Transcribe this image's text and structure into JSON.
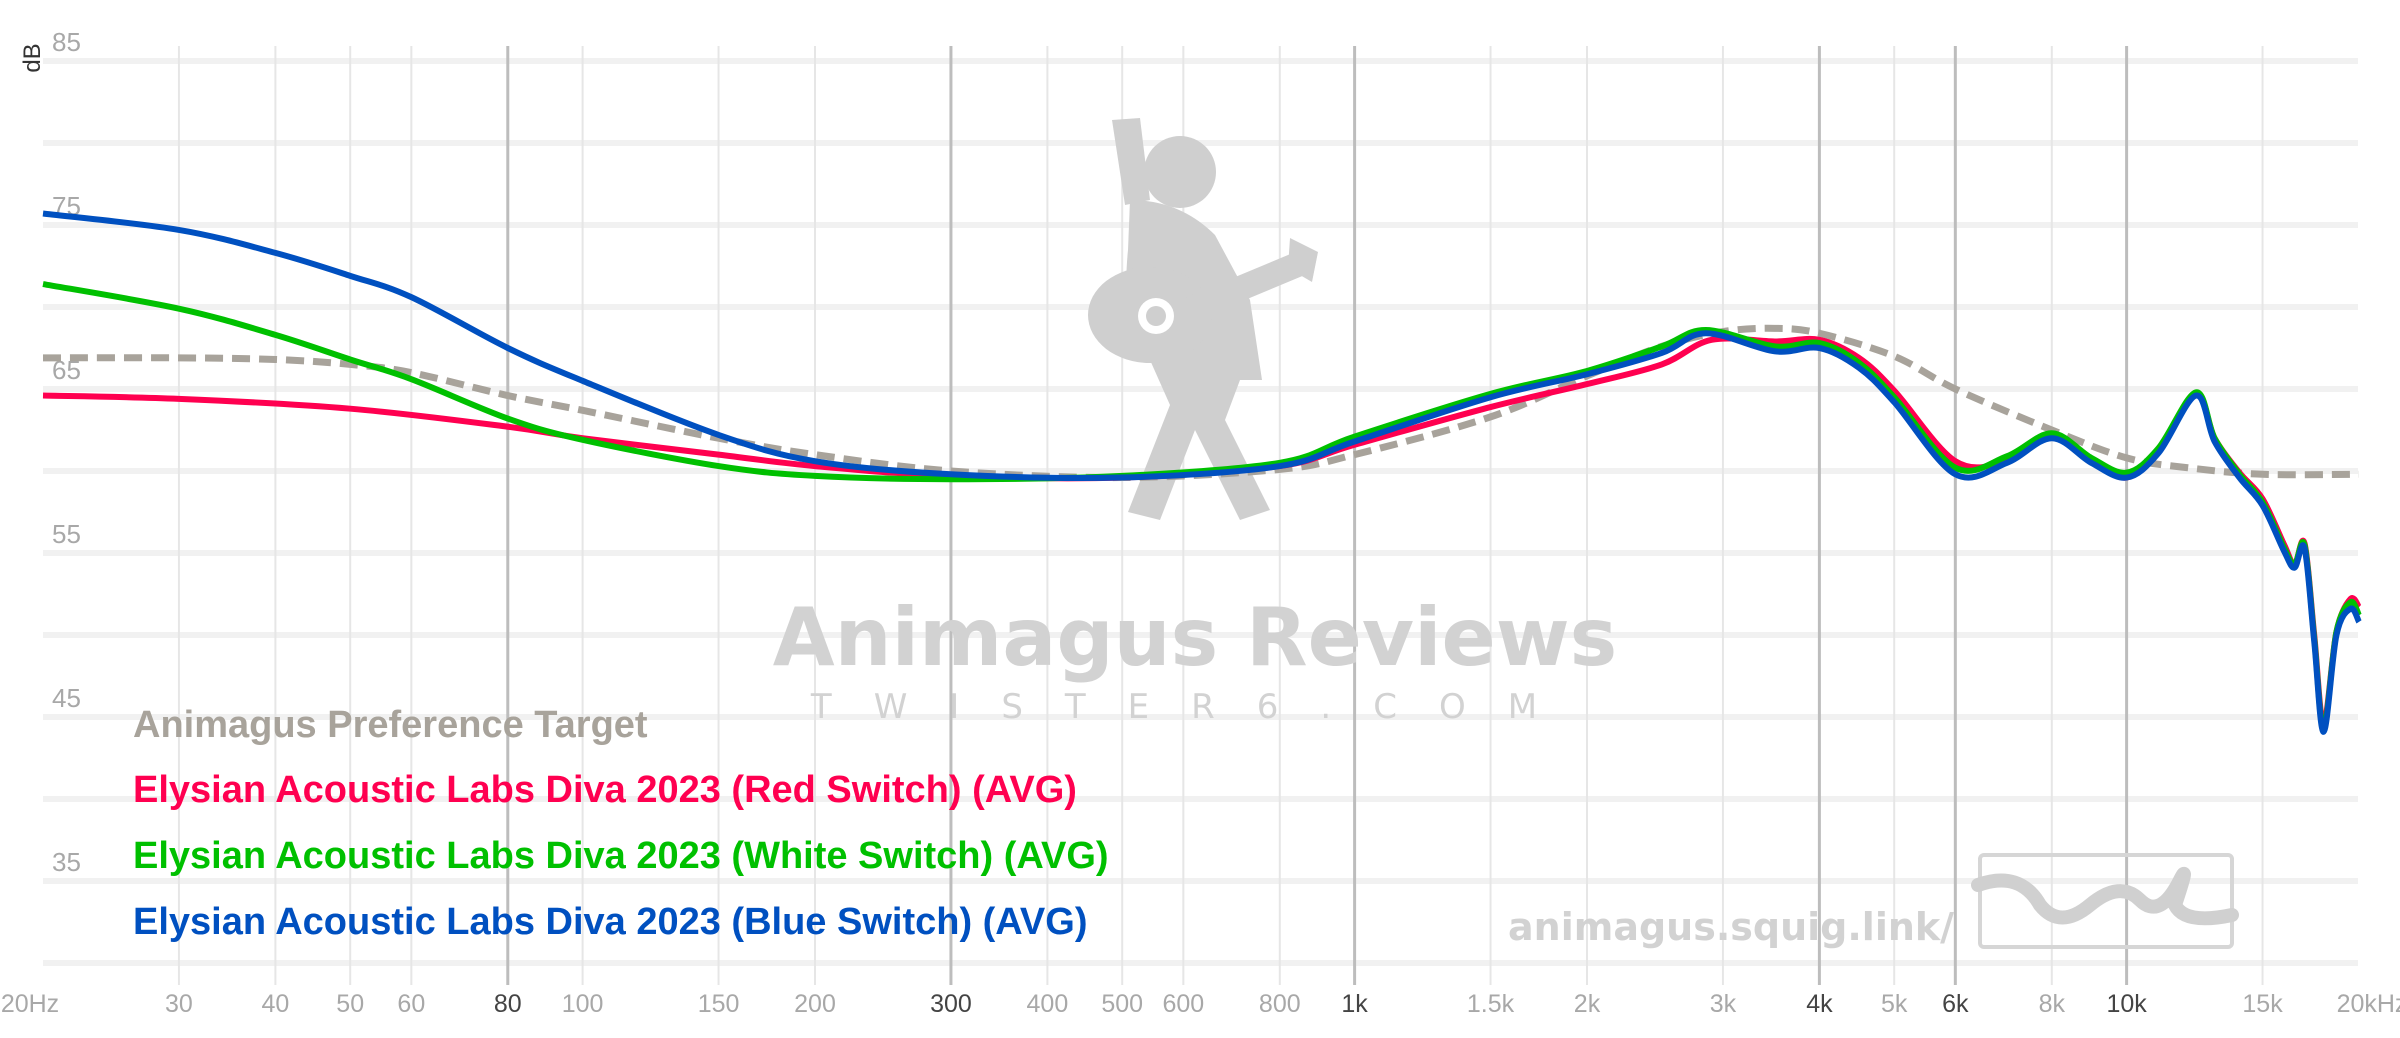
{
  "chart_data": {
    "type": "line",
    "ylabel": "dB",
    "xscale": "log",
    "xlim": [
      20,
      20000
    ],
    "ylim": [
      30,
      85
    ],
    "grid": true,
    "legend_placement": "bottom-left",
    "y_ticks": [
      "85",
      "75",
      "65",
      "55",
      "45",
      "35"
    ],
    "y_tick_values": [
      85,
      75,
      65,
      55,
      45,
      35
    ],
    "x_ticks": [
      {
        "f": 20,
        "label": "20Hz",
        "major": false
      },
      {
        "f": 30,
        "label": "30",
        "major": false
      },
      {
        "f": 40,
        "label": "40",
        "major": false
      },
      {
        "f": 50,
        "label": "50",
        "major": false
      },
      {
        "f": 60,
        "label": "60",
        "major": false
      },
      {
        "f": 80,
        "label": "80",
        "major": true
      },
      {
        "f": 100,
        "label": "100",
        "major": false
      },
      {
        "f": 150,
        "label": "150",
        "major": false
      },
      {
        "f": 200,
        "label": "200",
        "major": false
      },
      {
        "f": 300,
        "label": "300",
        "major": true
      },
      {
        "f": 400,
        "label": "400",
        "major": false
      },
      {
        "f": 500,
        "label": "500",
        "major": false
      },
      {
        "f": 600,
        "label": "600",
        "major": false
      },
      {
        "f": 800,
        "label": "800",
        "major": false
      },
      {
        "f": 1000,
        "label": "1k",
        "major": true
      },
      {
        "f": 1500,
        "label": "1.5k",
        "major": false
      },
      {
        "f": 2000,
        "label": "2k",
        "major": false
      },
      {
        "f": 3000,
        "label": "3k",
        "major": false
      },
      {
        "f": 4000,
        "label": "4k",
        "major": true
      },
      {
        "f": 5000,
        "label": "5k",
        "major": false
      },
      {
        "f": 6000,
        "label": "6k",
        "major": true
      },
      {
        "f": 8000,
        "label": "8k",
        "major": false
      },
      {
        "f": 10000,
        "label": "10k",
        "major": true
      },
      {
        "f": 15000,
        "label": "15k",
        "major": false
      },
      {
        "f": 20000,
        "label": "20kHz",
        "major": false
      }
    ],
    "series": [
      {
        "name": "Animagus Preference Target",
        "color": "#a8a39b",
        "dashed": true,
        "x": [
          20,
          30,
          40,
          50,
          60,
          80,
          100,
          150,
          200,
          300,
          500,
          800,
          1000,
          1500,
          2000,
          2500,
          3000,
          3500,
          4000,
          5000,
          6000,
          8000,
          10000,
          12000,
          15000,
          20000
        ],
        "y": [
          66.9,
          66.9,
          66.8,
          66.5,
          66.0,
          64.6,
          63.7,
          62.0,
          61.0,
          60.0,
          59.6,
          60.1,
          61.0,
          63.3,
          65.8,
          67.6,
          68.5,
          68.7,
          68.4,
          67.0,
          65.0,
          62.5,
          60.8,
          60.2,
          59.8,
          59.8
        ]
      },
      {
        "name": "Elysian Acoustic Labs Diva 2023 (Red Switch) (AVG)",
        "color": "#ff0050",
        "x": [
          20,
          30,
          50,
          80,
          100,
          150,
          200,
          300,
          500,
          800,
          1000,
          1500,
          2000,
          2500,
          2900,
          3500,
          4000,
          4500,
          5000,
          6000,
          7000,
          8000,
          9000,
          10000,
          11000,
          12300,
          13000,
          14000,
          15000,
          16000,
          16500,
          17000,
          17500,
          18000,
          18700,
          19500,
          20000
        ],
        "y": [
          64.6,
          64.4,
          63.8,
          62.7,
          62.0,
          61.0,
          60.3,
          59.7,
          59.6,
          60.3,
          61.6,
          63.9,
          65.3,
          66.5,
          68.0,
          67.9,
          68.0,
          66.9,
          64.9,
          60.6,
          60.6,
          62.1,
          60.6,
          59.6,
          61.2,
          64.7,
          62.0,
          59.9,
          58.3,
          55.5,
          54.3,
          55.6,
          50.0,
          44.6,
          50.2,
          52.2,
          51.7
        ]
      },
      {
        "name": "Elysian Acoustic Labs Diva 2023 (White Switch) (AVG)",
        "color": "#00c000",
        "x": [
          20,
          30,
          40,
          50,
          60,
          80,
          100,
          150,
          200,
          300,
          500,
          800,
          1000,
          1500,
          2000,
          2500,
          2850,
          3500,
          4000,
          4500,
          5000,
          6000,
          7000,
          8000,
          9000,
          10000,
          11000,
          12300,
          13000,
          14000,
          15000,
          16000,
          16500,
          17000,
          17500,
          18000,
          18700,
          19500,
          20000
        ],
        "y": [
          71.4,
          69.9,
          68.3,
          66.8,
          65.6,
          63.2,
          61.9,
          60.3,
          59.7,
          59.5,
          59.7,
          60.5,
          62.1,
          64.7,
          66.1,
          67.6,
          68.6,
          67.6,
          67.8,
          66.6,
          64.5,
          60.2,
          60.9,
          62.3,
          60.8,
          59.9,
          61.4,
          64.8,
          62.0,
          59.8,
          58.1,
          55.3,
          54.3,
          55.5,
          49.8,
          44.3,
          50.2,
          52.0,
          51.2
        ]
      },
      {
        "name": "Elysian Acoustic Labs Diva 2023 (Blue Switch) (AVG)",
        "color": "#0050c0",
        "x": [
          20,
          30,
          40,
          50,
          60,
          80,
          100,
          150,
          200,
          300,
          500,
          800,
          1000,
          1500,
          2000,
          2500,
          2850,
          3500,
          4000,
          4500,
          5000,
          6000,
          7000,
          8000,
          9000,
          10000,
          11000,
          12300,
          13000,
          14000,
          15000,
          16000,
          16500,
          17000,
          17500,
          18000,
          18700,
          19500,
          20000
        ],
        "y": [
          75.7,
          74.7,
          73.3,
          71.9,
          70.6,
          67.5,
          65.5,
          62.2,
          60.6,
          59.8,
          59.6,
          60.3,
          61.8,
          64.5,
          65.9,
          67.2,
          68.4,
          67.3,
          67.5,
          66.3,
          64.2,
          59.8,
          60.5,
          62.0,
          60.5,
          59.6,
          61.1,
          64.6,
          61.8,
          59.6,
          57.9,
          55.1,
          54.1,
          55.3,
          49.6,
          44.1,
          50.0,
          51.6,
          50.8
        ]
      }
    ]
  },
  "watermark": {
    "title": "Animagus Reviews",
    "subtitle": "TWISTER6.COM",
    "url": "animagus.squig.link/",
    "logo_icon": "guitar-player-icon",
    "squig_logo_icon": "squiggle-logo-icon"
  }
}
